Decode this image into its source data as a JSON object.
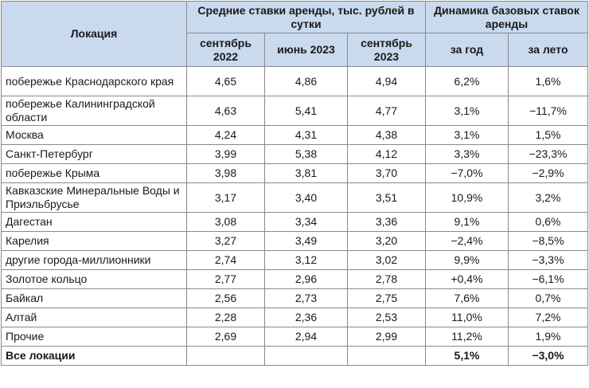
{
  "header": {
    "location": "Локация",
    "rates_group": "Средние ставки аренды, тыс. рублей в сутки",
    "dynamics_group": "Динамика базовых ставок аренды",
    "col_sep2022": "сентябрь 2022",
    "col_jun2023": "июнь 2023",
    "col_sep2023": "сентябрь 2023",
    "col_year": "за год",
    "col_summer": "за лето"
  },
  "rows": [
    {
      "location": "побережье Краснодарского края",
      "sep2022": "4,65",
      "jun2023": "4,86",
      "sep2023": "4,94",
      "year": "6,2%",
      "summer": "1,6%"
    },
    {
      "location": "побережье Калининградской области",
      "sep2022": "4,63",
      "jun2023": "5,41",
      "sep2023": "4,77",
      "year": "3,1%",
      "summer": "−11,7%"
    },
    {
      "location": "Москва",
      "sep2022": "4,24",
      "jun2023": "4,31",
      "sep2023": "4,38",
      "year": "3,1%",
      "summer": "1,5%"
    },
    {
      "location": "Санкт-Петербург",
      "sep2022": "3,99",
      "jun2023": "5,38",
      "sep2023": "4,12",
      "year": "3,3%",
      "summer": "−23,3%"
    },
    {
      "location": "побережье Крыма",
      "sep2022": "3,98",
      "jun2023": "3,81",
      "sep2023": "3,70",
      "year": "−7,0%",
      "summer": "−2,9%"
    },
    {
      "location": "Кавказские Минеральные Воды и Приэльбрусье",
      "sep2022": "3,17",
      "jun2023": "3,40",
      "sep2023": "3,51",
      "year": "10,9%",
      "summer": "3,2%"
    },
    {
      "location": "Дагестан",
      "sep2022": "3,08",
      "jun2023": "3,34",
      "sep2023": "3,36",
      "year": "9,1%",
      "summer": "0,6%"
    },
    {
      "location": "Карелия",
      "sep2022": "3,27",
      "jun2023": "3,49",
      "sep2023": "3,20",
      "year": "−2,4%",
      "summer": "−8,5%"
    },
    {
      "location": "другие города-миллионники",
      "sep2022": "2,74",
      "jun2023": "3,12",
      "sep2023": "3,02",
      "year": "9,9%",
      "summer": "−3,3%"
    },
    {
      "location": "Золотое кольцо",
      "sep2022": "2,77",
      "jun2023": "2,96",
      "sep2023": "2,78",
      "year": "+0,4%",
      "summer": "−6,1%"
    },
    {
      "location": "Байкал",
      "sep2022": "2,56",
      "jun2023": "2,73",
      "sep2023": "2,75",
      "year": "7,6%",
      "summer": "0,7%"
    },
    {
      "location": "Алтай",
      "sep2022": "2,28",
      "jun2023": "2,36",
      "sep2023": "2,53",
      "year": "11,0%",
      "summer": "7,2%"
    },
    {
      "location": "Прочие",
      "sep2022": "2,69",
      "jun2023": "2,94",
      "sep2023": "2,99",
      "year": "11,2%",
      "summer": "1,9%"
    }
  ],
  "total": {
    "location": "Все локации",
    "sep2022": "",
    "jun2023": "",
    "sep2023": "",
    "year": "5,1%",
    "summer": "−3,0%"
  }
}
